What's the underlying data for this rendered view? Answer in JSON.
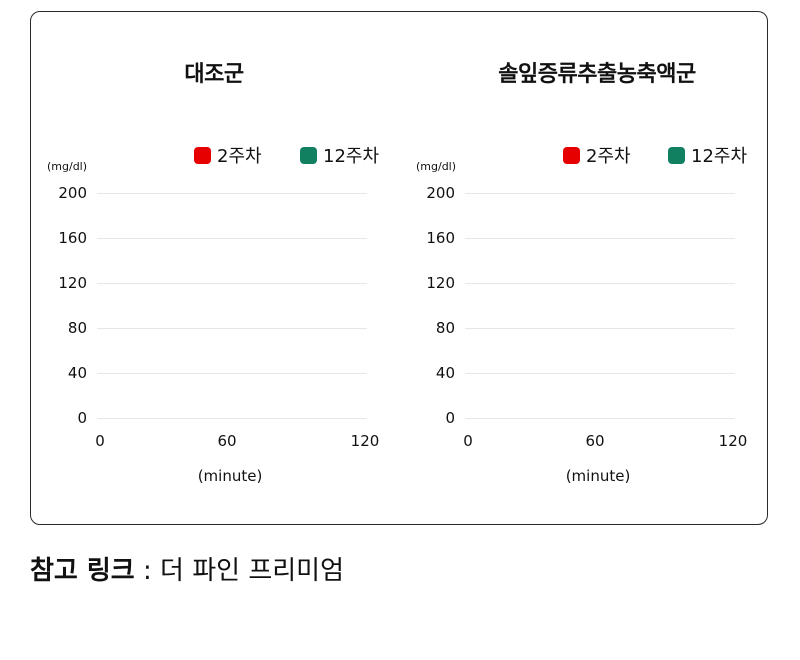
{
  "caption": {
    "label": "참고 링크",
    "separator": " : ",
    "value": "더 파인 프리미엄"
  },
  "chart_data": [
    {
      "type": "line",
      "title": "대조군",
      "ylabel": "(mg/dl)",
      "xlabel": "(minute)",
      "xlim": [
        0,
        120
      ],
      "ylim": [
        0,
        200
      ],
      "x_ticks": [
        "0",
        "60",
        "120"
      ],
      "y_ticks": [
        "200",
        "160",
        "120",
        "80",
        "40",
        "0"
      ],
      "grid": true,
      "legend_position": "top-right",
      "series": [
        {
          "name": "2주차",
          "color": "#e60000",
          "values": []
        },
        {
          "name": "12주차",
          "color": "#108060",
          "values": []
        }
      ]
    },
    {
      "type": "line",
      "title": "솔잎증류추출농축액군",
      "ylabel": "(mg/dl)",
      "xlabel": "(minute)",
      "xlim": [
        0,
        120
      ],
      "ylim": [
        0,
        200
      ],
      "x_ticks": [
        "0",
        "60",
        "120"
      ],
      "y_ticks": [
        "200",
        "160",
        "120",
        "80",
        "40",
        "0"
      ],
      "grid": true,
      "legend_position": "top-right",
      "series": [
        {
          "name": "2주차",
          "color": "#e60000",
          "values": []
        },
        {
          "name": "12주차",
          "color": "#108060",
          "values": []
        }
      ]
    }
  ]
}
